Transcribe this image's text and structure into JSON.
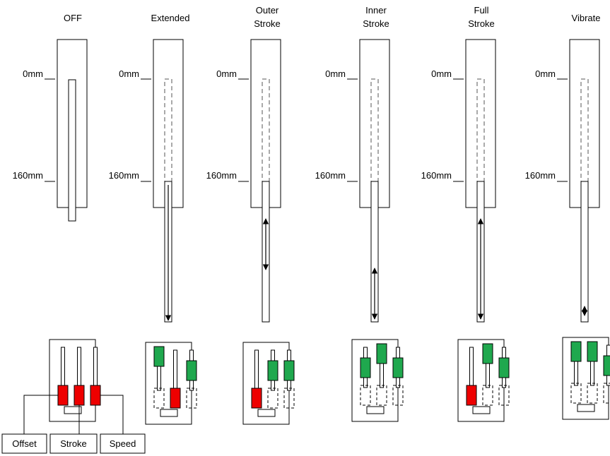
{
  "colors": {
    "on": "#1fa84e",
    "off": "#ee0000",
    "line": "#000000",
    "dash": "#555555"
  },
  "axis_labels": {
    "zero": "0mm",
    "max": "160mm"
  },
  "legend": {
    "offset": "Offset",
    "stroke": "Stroke",
    "speed": "Speed"
  },
  "panels": [
    {
      "id": "off",
      "title": [
        "OFF"
      ],
      "rod": "short",
      "arrow": "none",
      "sliders": [
        "off-low",
        "off-low",
        "off-low"
      ]
    },
    {
      "id": "extended",
      "title": [
        "Extended"
      ],
      "rod": "long",
      "arrow": "down",
      "sliders": [
        "on-high",
        "off-low",
        "on-mid"
      ]
    },
    {
      "id": "outer-stroke",
      "title": [
        "Outer",
        "Stroke"
      ],
      "rod": "long",
      "arrow": "both-upper",
      "sliders": [
        "off-low",
        "on-mid",
        "on-mid"
      ]
    },
    {
      "id": "inner-stroke",
      "title": [
        "Inner",
        "Stroke"
      ],
      "rod": "long",
      "arrow": "both-lower",
      "sliders": [
        "on-mid",
        "on-high",
        "on-mid"
      ]
    },
    {
      "id": "full-stroke",
      "title": [
        "Full",
        "Stroke"
      ],
      "rod": "long",
      "arrow": "both-full",
      "sliders": [
        "off-low",
        "on-high",
        "on-mid"
      ]
    },
    {
      "id": "vibrate",
      "title": [
        "Vibrate"
      ],
      "rod": "long",
      "arrow": "short-both",
      "sliders": [
        "on-high",
        "on-high",
        "on-mid"
      ]
    }
  ]
}
